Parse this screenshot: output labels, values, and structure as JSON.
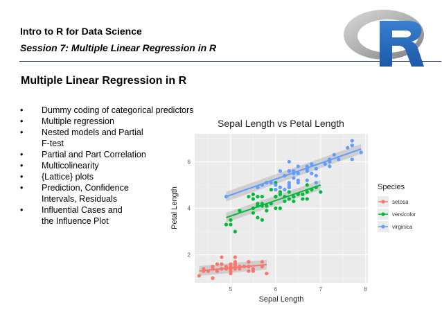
{
  "header": {
    "course_title": "Intro to R for Data Science",
    "session_title": "Session 7: Multiple Linear Regression in R",
    "rule_color": "#1f3b57"
  },
  "logo": {
    "icon": "r-logo-icon",
    "letter": "R",
    "ring_color": "#a6a6a6",
    "letter_color": "#2165b6"
  },
  "slide": {
    "heading": "Multiple Linear Regression in R",
    "bullet_symbol": "•",
    "bullets": [
      "Dummy coding of categorical predictors",
      "Multiple regression",
      "Nested models and Partial\nF-test",
      "Partial and Part Correlation",
      "Multicolinearity",
      "{Lattice} plots",
      "Prediction, Confidence\nIntervals, Residuals",
      "Influential Cases and\nthe Influence Plot"
    ]
  },
  "chart_data": {
    "type": "scatter",
    "title": "Sepal Length vs Petal Length",
    "xlabel": "Sepal Length",
    "ylabel": "Petal Length",
    "xlim": [
      4.2,
      8.05
    ],
    "ylim": [
      0.8,
      7.2
    ],
    "xticks": [
      "5",
      "6",
      "7",
      "8"
    ],
    "yticks": [
      "2",
      "4",
      "6"
    ],
    "grid": true,
    "legend": {
      "title": "Species",
      "position": "right"
    },
    "series": [
      {
        "name": "setosa",
        "color": "#f8766d",
        "fit": {
          "x": [
            4.3,
            5.8
          ],
          "y": [
            1.31,
            1.58
          ]
        },
        "x": [
          4.3,
          4.4,
          4.4,
          4.4,
          4.5,
          4.6,
          4.6,
          4.6,
          4.6,
          4.7,
          4.7,
          4.8,
          4.8,
          4.8,
          4.8,
          4.8,
          4.9,
          4.9,
          4.9,
          5.0,
          5.0,
          5.0,
          5.0,
          5.0,
          5.0,
          5.0,
          5.0,
          5.1,
          5.1,
          5.1,
          5.1,
          5.1,
          5.1,
          5.1,
          5.1,
          5.2,
          5.2,
          5.2,
          5.3,
          5.4,
          5.4,
          5.4,
          5.4,
          5.4,
          5.5,
          5.5,
          5.7,
          5.7,
          5.8
        ],
        "y": [
          1.1,
          1.4,
          1.3,
          1.3,
          1.3,
          1.4,
          1.5,
          1.4,
          1.0,
          1.3,
          1.6,
          1.6,
          1.4,
          1.9,
          1.6,
          1.4,
          1.4,
          1.5,
          1.4,
          1.4,
          1.5,
          1.2,
          1.3,
          1.6,
          1.4,
          1.6,
          1.5,
          1.4,
          1.4,
          1.5,
          1.5,
          1.7,
          1.5,
          1.9,
          1.6,
          1.5,
          1.4,
          1.5,
          1.5,
          1.7,
          1.5,
          1.3,
          1.7,
          1.5,
          1.4,
          1.3,
          1.7,
          1.5,
          1.2
        ]
      },
      {
        "name": "versicolor",
        "color": "#00ba38",
        "fit": {
          "x": [
            4.9,
            7.0
          ],
          "y": [
            3.6,
            5.0
          ]
        },
        "x": [
          4.9,
          5.0,
          5.0,
          5.1,
          5.2,
          5.4,
          5.5,
          5.5,
          5.5,
          5.5,
          5.6,
          5.6,
          5.6,
          5.6,
          5.7,
          5.7,
          5.7,
          5.7,
          5.8,
          5.8,
          5.9,
          5.9,
          6.0,
          6.0,
          6.0,
          6.0,
          6.1,
          6.1,
          6.1,
          6.1,
          6.2,
          6.2,
          6.3,
          6.3,
          6.3,
          6.4,
          6.4,
          6.5,
          6.6,
          6.6,
          6.7,
          6.7,
          6.7,
          6.8,
          6.9,
          7.0
        ],
        "y": [
          3.3,
          3.5,
          3.3,
          3.0,
          3.9,
          4.5,
          4.0,
          4.6,
          3.8,
          4.4,
          3.6,
          4.5,
          4.1,
          4.2,
          4.5,
          3.5,
          4.2,
          4.1,
          4.1,
          3.9,
          4.8,
          4.2,
          4.0,
          5.1,
          4.5,
          4.5,
          4.7,
          4.0,
          4.7,
          4.6,
          4.3,
          4.5,
          4.7,
          4.9,
          4.4,
          4.5,
          4.3,
          4.6,
          4.6,
          4.4,
          5.0,
          4.4,
          4.7,
          4.8,
          4.9,
          4.7
        ]
      },
      {
        "name": "virginica",
        "color": "#619cff",
        "fit": {
          "x": [
            4.9,
            7.9
          ],
          "y": [
            4.5,
            6.55
          ]
        },
        "x": [
          4.9,
          5.6,
          5.7,
          5.8,
          5.8,
          5.8,
          5.9,
          6.0,
          6.0,
          6.1,
          6.1,
          6.2,
          6.2,
          6.3,
          6.3,
          6.3,
          6.3,
          6.3,
          6.3,
          6.4,
          6.4,
          6.4,
          6.4,
          6.5,
          6.5,
          6.5,
          6.5,
          6.7,
          6.7,
          6.7,
          6.7,
          6.7,
          6.8,
          6.8,
          6.9,
          6.9,
          6.9,
          7.1,
          7.2,
          7.2,
          7.2,
          7.3,
          7.4,
          7.6,
          7.7,
          7.7,
          7.7,
          7.7,
          7.9
        ],
        "y": [
          4.5,
          4.9,
          5.0,
          5.1,
          5.1,
          5.1,
          5.1,
          5.0,
          4.8,
          5.6,
          4.9,
          4.8,
          5.4,
          6.0,
          5.6,
          5.1,
          4.9,
          5.6,
          5.0,
          5.6,
          5.3,
          5.5,
          5.6,
          5.8,
          5.5,
          5.2,
          5.1,
          5.8,
          5.7,
          5.6,
          5.2,
          5.7,
          5.9,
          5.5,
          5.1,
          5.7,
          5.4,
          5.9,
          6.1,
          5.8,
          6.0,
          6.3,
          6.1,
          6.6,
          6.7,
          6.9,
          6.7,
          6.1,
          6.4
        ]
      }
    ]
  }
}
